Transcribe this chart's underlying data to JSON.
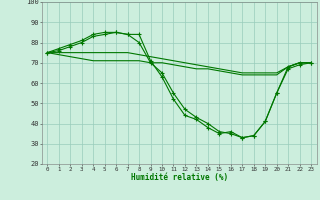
{
  "title": "",
  "xlabel": "Humidité relative (%)",
  "ylabel": "",
  "xlim": [
    -0.5,
    23.5
  ],
  "ylim": [
    20,
    100
  ],
  "xticks": [
    0,
    1,
    2,
    3,
    4,
    5,
    6,
    7,
    8,
    9,
    10,
    11,
    12,
    13,
    14,
    15,
    16,
    17,
    18,
    19,
    20,
    21,
    22,
    23
  ],
  "yticks": [
    20,
    30,
    40,
    50,
    60,
    70,
    80,
    90,
    100
  ],
  "background_color": "#cceedd",
  "grid_color": "#99ccbb",
  "line_color": "#007700",
  "series": [
    {
      "y": [
        75,
        77,
        79,
        81,
        84,
        85,
        85,
        84,
        84,
        71,
        63,
        52,
        44,
        42,
        38,
        35,
        36,
        33,
        34,
        41,
        55,
        68,
        70,
        70
      ],
      "marker": true
    },
    {
      "y": [
        75,
        76,
        78,
        80,
        83,
        84,
        85,
        84,
        80,
        70,
        65,
        55,
        47,
        43,
        40,
        36,
        35,
        33,
        34,
        41,
        55,
        67,
        69,
        70
      ],
      "marker": true
    },
    {
      "y": [
        75,
        75,
        75,
        75,
        75,
        75,
        75,
        75,
        74,
        73,
        72,
        71,
        70,
        69,
        68,
        67,
        66,
        65,
        65,
        65,
        65,
        68,
        70,
        70
      ],
      "marker": false
    },
    {
      "y": [
        75,
        74,
        73,
        72,
        71,
        71,
        71,
        71,
        71,
        70,
        70,
        69,
        68,
        67,
        67,
        66,
        65,
        64,
        64,
        64,
        64,
        68,
        70,
        70
      ],
      "marker": false
    }
  ]
}
